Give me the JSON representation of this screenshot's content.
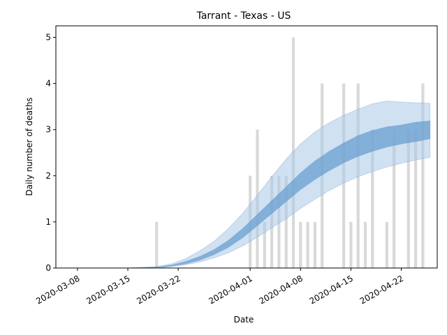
{
  "chart_data": {
    "type": "bar",
    "title": "Tarrant - Texas - US",
    "xlabel": "Date",
    "ylabel": "Daily number of deaths",
    "x_start": "2020-03-05",
    "x_end": "2020-04-27",
    "ylim": [
      0,
      5.25
    ],
    "x_tick_labels": [
      "2020-03-08",
      "2020-03-15",
      "2020-03-22",
      "2020-04-01",
      "2020-04-08",
      "2020-04-15",
      "2020-04-22"
    ],
    "y_ticks": [
      0,
      1,
      2,
      3,
      4,
      5
    ],
    "grid": false,
    "colors": {
      "bars": "#d9d9d9",
      "inner_band": "#6a9fd0",
      "outer_band": "#a9c8e8",
      "band_edge": "#4a7fb8"
    },
    "observed_deaths": {
      "dates": [
        "2020-03-15",
        "2020-03-16",
        "2020-03-17",
        "2020-03-18",
        "2020-03-19",
        "2020-03-20",
        "2020-03-21",
        "2020-03-22",
        "2020-03-23",
        "2020-03-24",
        "2020-03-25",
        "2020-03-26",
        "2020-03-27",
        "2020-03-28",
        "2020-03-29",
        "2020-03-30",
        "2020-03-31",
        "2020-04-01",
        "2020-04-02",
        "2020-04-03",
        "2020-04-04",
        "2020-04-05",
        "2020-04-06",
        "2020-04-07",
        "2020-04-08",
        "2020-04-09",
        "2020-04-10",
        "2020-04-11",
        "2020-04-12",
        "2020-04-13",
        "2020-04-14",
        "2020-04-15",
        "2020-04-16",
        "2020-04-17",
        "2020-04-18",
        "2020-04-19",
        "2020-04-20",
        "2020-04-21",
        "2020-04-22",
        "2020-04-23",
        "2020-04-24",
        "2020-04-25",
        "2020-04-26"
      ],
      "values": [
        0,
        0,
        0,
        0,
        1,
        0,
        0,
        0,
        0,
        0,
        0,
        0,
        0,
        0,
        0,
        0,
        0,
        2,
        3,
        1,
        2,
        2,
        2,
        5,
        1,
        1,
        1,
        4,
        0,
        0,
        4,
        1,
        4,
        1,
        3,
        0,
        1,
        3,
        0,
        3,
        3,
        4,
        0
      ]
    },
    "series": [
      {
        "dates": [
          "2020-03-15",
          "2020-03-17",
          "2020-03-19",
          "2020-03-21",
          "2020-03-23",
          "2020-03-25",
          "2020-03-27",
          "2020-03-29",
          "2020-03-31",
          "2020-04-02",
          "2020-04-04",
          "2020-04-06",
          "2020-04-08",
          "2020-04-10",
          "2020-04-12",
          "2020-04-14",
          "2020-04-16",
          "2020-04-18",
          "2020-04-20",
          "2020-04-22",
          "2020-04-24",
          "2020-04-26"
        ],
        "inner_lower": [
          0,
          0,
          0.01,
          0.04,
          0.09,
          0.17,
          0.29,
          0.45,
          0.66,
          0.92,
          1.18,
          1.44,
          1.7,
          1.92,
          2.11,
          2.28,
          2.42,
          2.53,
          2.62,
          2.69,
          2.74,
          2.8
        ],
        "inner_upper": [
          0,
          0.01,
          0.02,
          0.06,
          0.14,
          0.25,
          0.4,
          0.6,
          0.86,
          1.16,
          1.46,
          1.76,
          2.06,
          2.32,
          2.53,
          2.71,
          2.87,
          2.98,
          3.06,
          3.1,
          3.16,
          3.19
        ],
        "outer_lower": [
          0,
          0,
          0,
          0.03,
          0.07,
          0.13,
          0.22,
          0.33,
          0.48,
          0.67,
          0.87,
          1.07,
          1.29,
          1.49,
          1.68,
          1.84,
          1.98,
          2.09,
          2.19,
          2.27,
          2.34,
          2.4
        ],
        "outer_upper": [
          0,
          0.01,
          0.03,
          0.09,
          0.2,
          0.37,
          0.58,
          0.86,
          1.19,
          1.58,
          1.98,
          2.36,
          2.69,
          2.95,
          3.15,
          3.31,
          3.44,
          3.56,
          3.62,
          3.6,
          3.58,
          3.57
        ]
      }
    ]
  }
}
